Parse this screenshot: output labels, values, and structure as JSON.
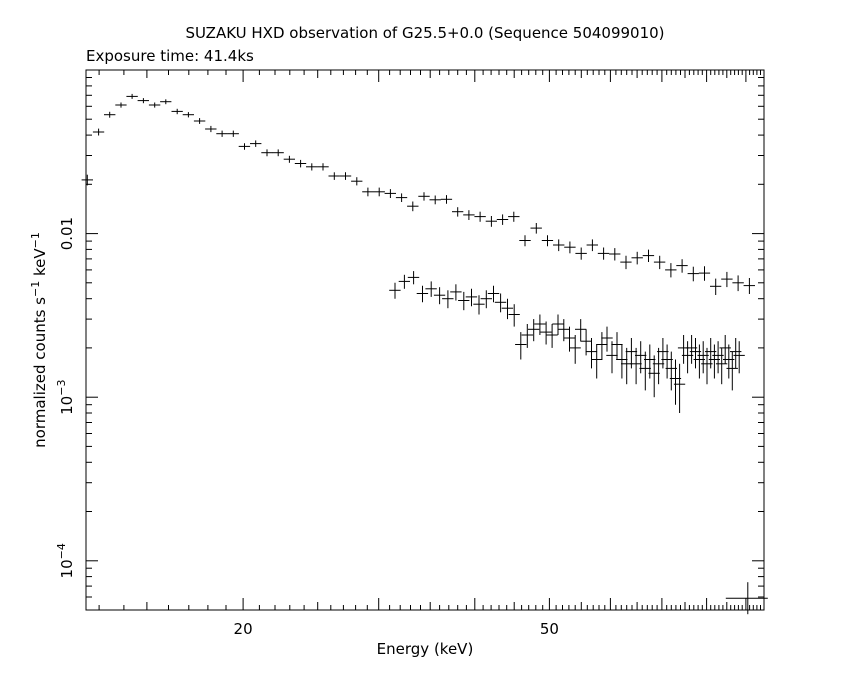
{
  "chart_data": {
    "type": "scatter",
    "title": "SUZAKU HXD observation of G25.5+0.0 (Sequence 504099010)",
    "subtitle": "Exposure time: 41.4ks",
    "xlabel": "Energy (keV)",
    "ylabel_parts": {
      "base": "normalized counts s",
      "exp1": "−1",
      "mid": " keV",
      "exp2": "−1"
    },
    "x_scale": "log",
    "y_scale": "log",
    "xlim": [
      12.5,
      95
    ],
    "ylim": [
      5e-05,
      0.1
    ],
    "x_tick_labels": [
      {
        "value": 20,
        "label": "20"
      },
      {
        "value": 50,
        "label": "50"
      }
    ],
    "y_tick_labels": [
      {
        "value": 0.01,
        "label": "0.01",
        "base": "",
        "exp": ""
      },
      {
        "value": 0.001,
        "label": "",
        "base": "10",
        "exp": "−3"
      },
      {
        "value": 0.0001,
        "label": "",
        "base": "10",
        "exp": "−4"
      }
    ],
    "series": [
      {
        "style": "crosses",
        "points": [
          [
            12.55,
            0.0213,
            0.0016
          ],
          [
            12.98,
            0.0418,
            0.002
          ],
          [
            13.42,
            0.0533,
            0.0022
          ],
          [
            13.88,
            0.0611,
            0.0022
          ],
          [
            14.35,
            0.069,
            0.0024
          ],
          [
            14.84,
            0.065,
            0.0023
          ],
          [
            15.35,
            0.0611,
            0.0022
          ],
          [
            15.87,
            0.064,
            0.0022
          ],
          [
            16.42,
            0.0558,
            0.0021
          ],
          [
            16.98,
            0.0533,
            0.002
          ],
          [
            17.56,
            0.0488,
            0.002
          ],
          [
            18.16,
            0.0436,
            0.0019
          ],
          [
            18.78,
            0.0408,
            0.0018
          ],
          [
            19.42,
            0.0408,
            0.0018
          ],
          [
            20.08,
            0.0341,
            0.0016
          ],
          [
            20.77,
            0.0355,
            0.0016
          ],
          [
            21.48,
            0.0312,
            0.0015
          ],
          [
            22.21,
            0.0312,
            0.0015
          ],
          [
            22.97,
            0.0285,
            0.0014
          ],
          [
            23.75,
            0.0268,
            0.0014
          ],
          [
            24.56,
            0.0256,
            0.0013
          ],
          [
            25.4,
            0.0256,
            0.0013
          ],
          [
            26.27,
            0.0225,
            0.0012
          ],
          [
            27.17,
            0.0225,
            0.0012
          ],
          [
            28.1,
            0.0209,
            0.0012
          ],
          [
            29.05,
            0.018,
            0.0011
          ],
          [
            30.05,
            0.018,
            0.0011
          ],
          [
            31.07,
            0.0176,
            0.0011
          ],
          [
            32.13,
            0.0166,
            0.001
          ],
          [
            33.23,
            0.0147,
            0.001
          ],
          [
            34.36,
            0.0169,
            0.001
          ],
          [
            35.53,
            0.0161,
            0.001
          ],
          [
            36.75,
            0.0162,
            0.001
          ],
          [
            38.0,
            0.0136,
            0.0009
          ],
          [
            39.3,
            0.013,
            0.0009
          ],
          [
            40.64,
            0.0127,
            0.0009
          ],
          [
            42.03,
            0.0119,
            0.0009
          ],
          [
            43.46,
            0.0122,
            0.0009
          ],
          [
            44.95,
            0.0127,
            0.0009
          ],
          [
            46.48,
            0.00907,
            0.0007
          ],
          [
            48.07,
            0.0108,
            0.0008
          ],
          [
            49.71,
            0.00907,
            0.0007
          ],
          [
            51.41,
            0.00851,
            0.0007
          ],
          [
            53.16,
            0.00826,
            0.00068
          ],
          [
            54.98,
            0.00757,
            0.00065
          ],
          [
            56.85,
            0.00851,
            0.0007
          ],
          [
            58.79,
            0.00757,
            0.00065
          ],
          [
            60.8,
            0.0075,
            0.00065
          ],
          [
            62.87,
            0.00669,
            0.00062
          ],
          [
            65.02,
            0.00711,
            0.00063
          ],
          [
            67.24,
            0.00734,
            0.00064
          ],
          [
            69.53,
            0.00669,
            0.00062
          ],
          [
            71.9,
            0.006,
            0.0006
          ],
          [
            74.35,
            0.00637,
            0.0006
          ],
          [
            76.89,
            0.00569,
            0.00058
          ],
          [
            79.51,
            0.00573,
            0.00058
          ],
          [
            82.22,
            0.00476,
            0.00055
          ],
          [
            85.03,
            0.00527,
            0.00056
          ],
          [
            87.93,
            0.005,
            0.00055
          ],
          [
            90.93,
            0.00481,
            0.00054
          ],
          [
            31.5,
            0.0045,
            0.0005
          ],
          [
            32.4,
            0.0051,
            0.0005
          ],
          [
            33.3,
            0.0054,
            0.0005
          ],
          [
            34.2,
            0.0043,
            0.0005
          ],
          [
            35.1,
            0.0046,
            0.0005
          ],
          [
            36.0,
            0.0042,
            0.0005
          ],
          [
            36.9,
            0.004,
            0.0005
          ],
          [
            37.8,
            0.0044,
            0.0005
          ],
          [
            38.7,
            0.0039,
            0.0005
          ],
          [
            39.6,
            0.0041,
            0.0005
          ],
          [
            40.5,
            0.0037,
            0.0005
          ],
          [
            41.4,
            0.004,
            0.0005
          ],
          [
            42.3,
            0.0043,
            0.0005
          ],
          [
            43.2,
            0.0038,
            0.0005
          ],
          [
            44.1,
            0.0035,
            0.0005
          ],
          [
            45.0,
            0.0032,
            0.0005
          ],
          [
            45.9,
            0.0021,
            0.0004
          ],
          [
            46.8,
            0.0024,
            0.0004
          ],
          [
            47.7,
            0.0026,
            0.0004
          ],
          [
            48.6,
            0.0028,
            0.0004
          ],
          [
            49.5,
            0.0025,
            0.0004
          ],
          [
            50.4,
            0.0024,
            0.0004
          ],
          [
            51.3,
            0.0028,
            0.0004
          ],
          [
            52.2,
            0.0026,
            0.0004
          ],
          [
            53.1,
            0.0023,
            0.0004
          ],
          [
            54.0,
            0.002,
            0.0004
          ],
          [
            54.9,
            0.0026,
            0.0004
          ],
          [
            55.8,
            0.0022,
            0.0004
          ],
          [
            56.7,
            0.0019,
            0.0004
          ],
          [
            57.6,
            0.0017,
            0.0004
          ],
          [
            58.5,
            0.0021,
            0.0004
          ],
          [
            59.4,
            0.0023,
            0.0004
          ],
          [
            60.3,
            0.0018,
            0.0004
          ],
          [
            61.2,
            0.0021,
            0.0004
          ],
          [
            62.1,
            0.0017,
            0.0004
          ],
          [
            63.0,
            0.0016,
            0.0004
          ],
          [
            63.9,
            0.0019,
            0.0004
          ],
          [
            64.8,
            0.0016,
            0.0004
          ],
          [
            65.7,
            0.0018,
            0.0004
          ],
          [
            66.6,
            0.0015,
            0.0004
          ],
          [
            67.5,
            0.0017,
            0.0004
          ],
          [
            68.4,
            0.0014,
            0.0004
          ],
          [
            69.3,
            0.0016,
            0.0004
          ],
          [
            70.2,
            0.0019,
            0.0004
          ],
          [
            71.1,
            0.0017,
            0.0004
          ],
          [
            72.0,
            0.0015,
            0.0004
          ],
          [
            72.9,
            0.0013,
            0.0004
          ],
          [
            73.8,
            0.0012,
            0.0004
          ],
          [
            74.7,
            0.002,
            0.0004
          ],
          [
            75.6,
            0.0018,
            0.0004
          ],
          [
            76.5,
            0.002,
            0.0004
          ],
          [
            77.4,
            0.0019,
            0.0004
          ],
          [
            78.3,
            0.0017,
            0.0004
          ],
          [
            79.2,
            0.0018,
            0.0004
          ],
          [
            80.1,
            0.0016,
            0.0004
          ],
          [
            81.0,
            0.0019,
            0.0004
          ],
          [
            81.9,
            0.0017,
            0.0004
          ],
          [
            82.8,
            0.0018,
            0.0004
          ],
          [
            83.7,
            0.0016,
            0.0004
          ],
          [
            84.6,
            0.002,
            0.0004
          ],
          [
            85.5,
            0.0017,
            0.0004
          ],
          [
            86.4,
            0.0015,
            0.0004
          ],
          [
            87.3,
            0.0019,
            0.0004
          ],
          [
            88.2,
            0.0018,
            0.0004
          ]
        ]
      }
    ],
    "corner_marker": {
      "x": 90.5,
      "y": 5.9e-05
    }
  }
}
